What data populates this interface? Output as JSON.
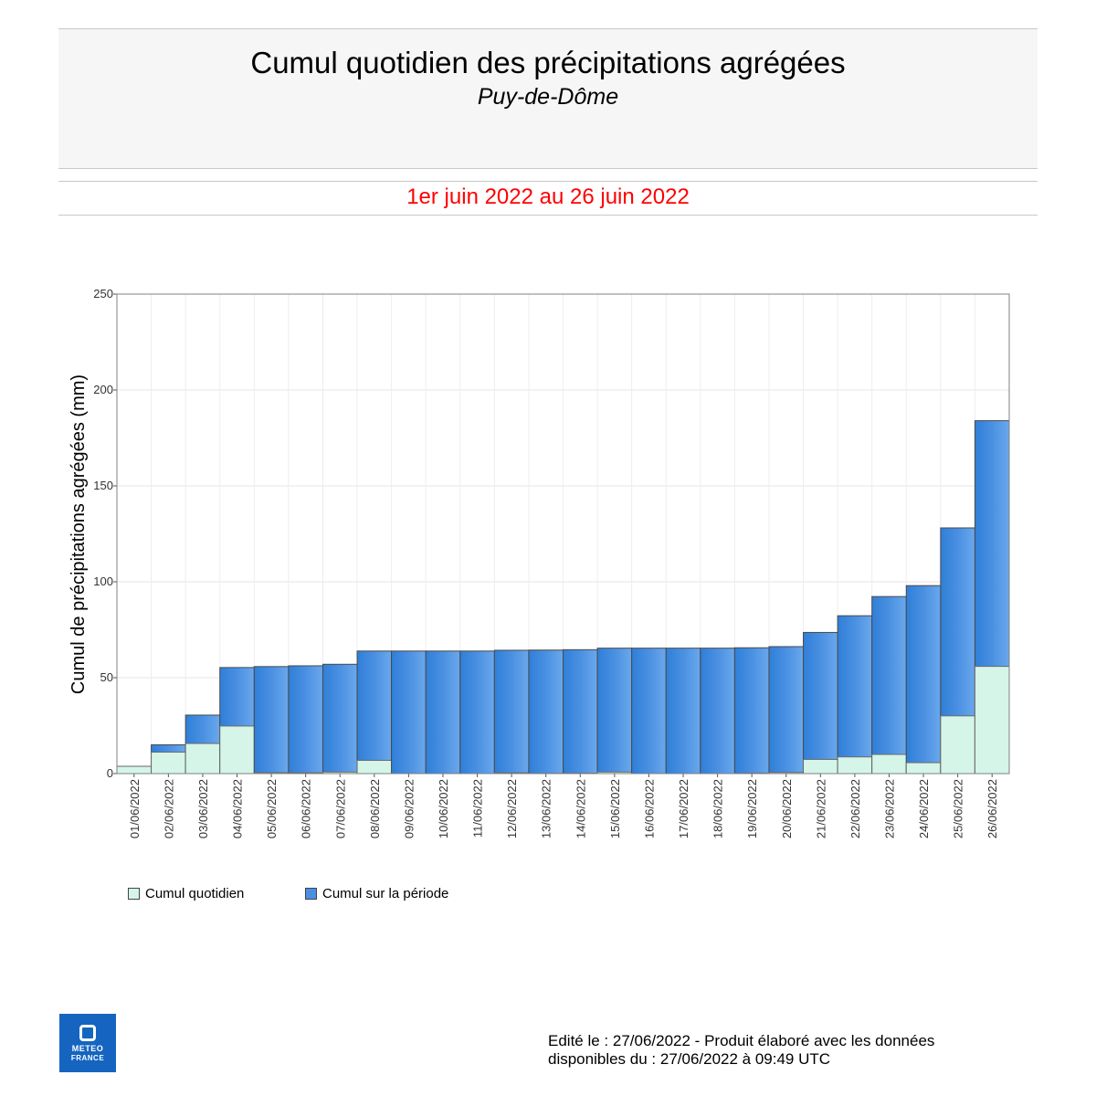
{
  "header": {
    "title": "Cumul quotidien des précipitations agrégées",
    "subtitle": "Puy-de-Dôme"
  },
  "period": "1er juin 2022 au 26 juin 2022",
  "colors": {
    "daily": "#d4f5e8",
    "cumulative": "#4a90e2",
    "period_text": "#ff0000"
  },
  "chart_data": {
    "type": "bar",
    "ylabel": "Cumul de précipitations agrégées (mm)",
    "xlabel": "",
    "ylim": [
      0,
      250
    ],
    "yticks": [
      0,
      50,
      100,
      150,
      200,
      250
    ],
    "grid": true,
    "legend_position": "bottom-left",
    "categories": [
      "01/06/2022",
      "02/06/2022",
      "03/06/2022",
      "04/06/2022",
      "05/06/2022",
      "06/06/2022",
      "07/06/2022",
      "08/06/2022",
      "09/06/2022",
      "10/06/2022",
      "11/06/2022",
      "12/06/2022",
      "13/06/2022",
      "14/06/2022",
      "15/06/2022",
      "16/06/2022",
      "17/06/2022",
      "18/06/2022",
      "19/06/2022",
      "20/06/2022",
      "21/06/2022",
      "22/06/2022",
      "23/06/2022",
      "24/06/2022",
      "25/06/2022",
      "26/06/2022"
    ],
    "series": [
      {
        "name": "Cumul sur la période",
        "values": [
          3.8,
          15,
          30.5,
          55.3,
          55.8,
          56.2,
          57,
          63.9,
          63.9,
          63.9,
          63.9,
          64.3,
          64.4,
          64.6,
          65.4,
          65.4,
          65.4,
          65.4,
          65.6,
          66.2,
          73.6,
          82.3,
          92.3,
          98,
          128.1,
          184
        ]
      },
      {
        "name": "Cumul quotidien",
        "values": [
          3.8,
          11.2,
          15.7,
          24.8,
          0.5,
          0.4,
          0.8,
          6.9,
          0,
          0,
          0,
          0.4,
          0.1,
          0.2,
          0.8,
          0,
          0,
          0,
          0.2,
          0.6,
          7.4,
          8.7,
          10,
          5.7,
          30.1,
          55.9
        ]
      }
    ]
  },
  "legend": {
    "daily_label": "Cumul quotidien",
    "cumulative_label": "Cumul sur la période"
  },
  "logo": {
    "line1": "METEO",
    "line2": "FRANCE"
  },
  "footer": {
    "line1": "Edité le : 27/06/2022 - Produit élaboré avec les données",
    "line2": "disponibles du : 27/06/2022 à 09:49 UTC"
  }
}
